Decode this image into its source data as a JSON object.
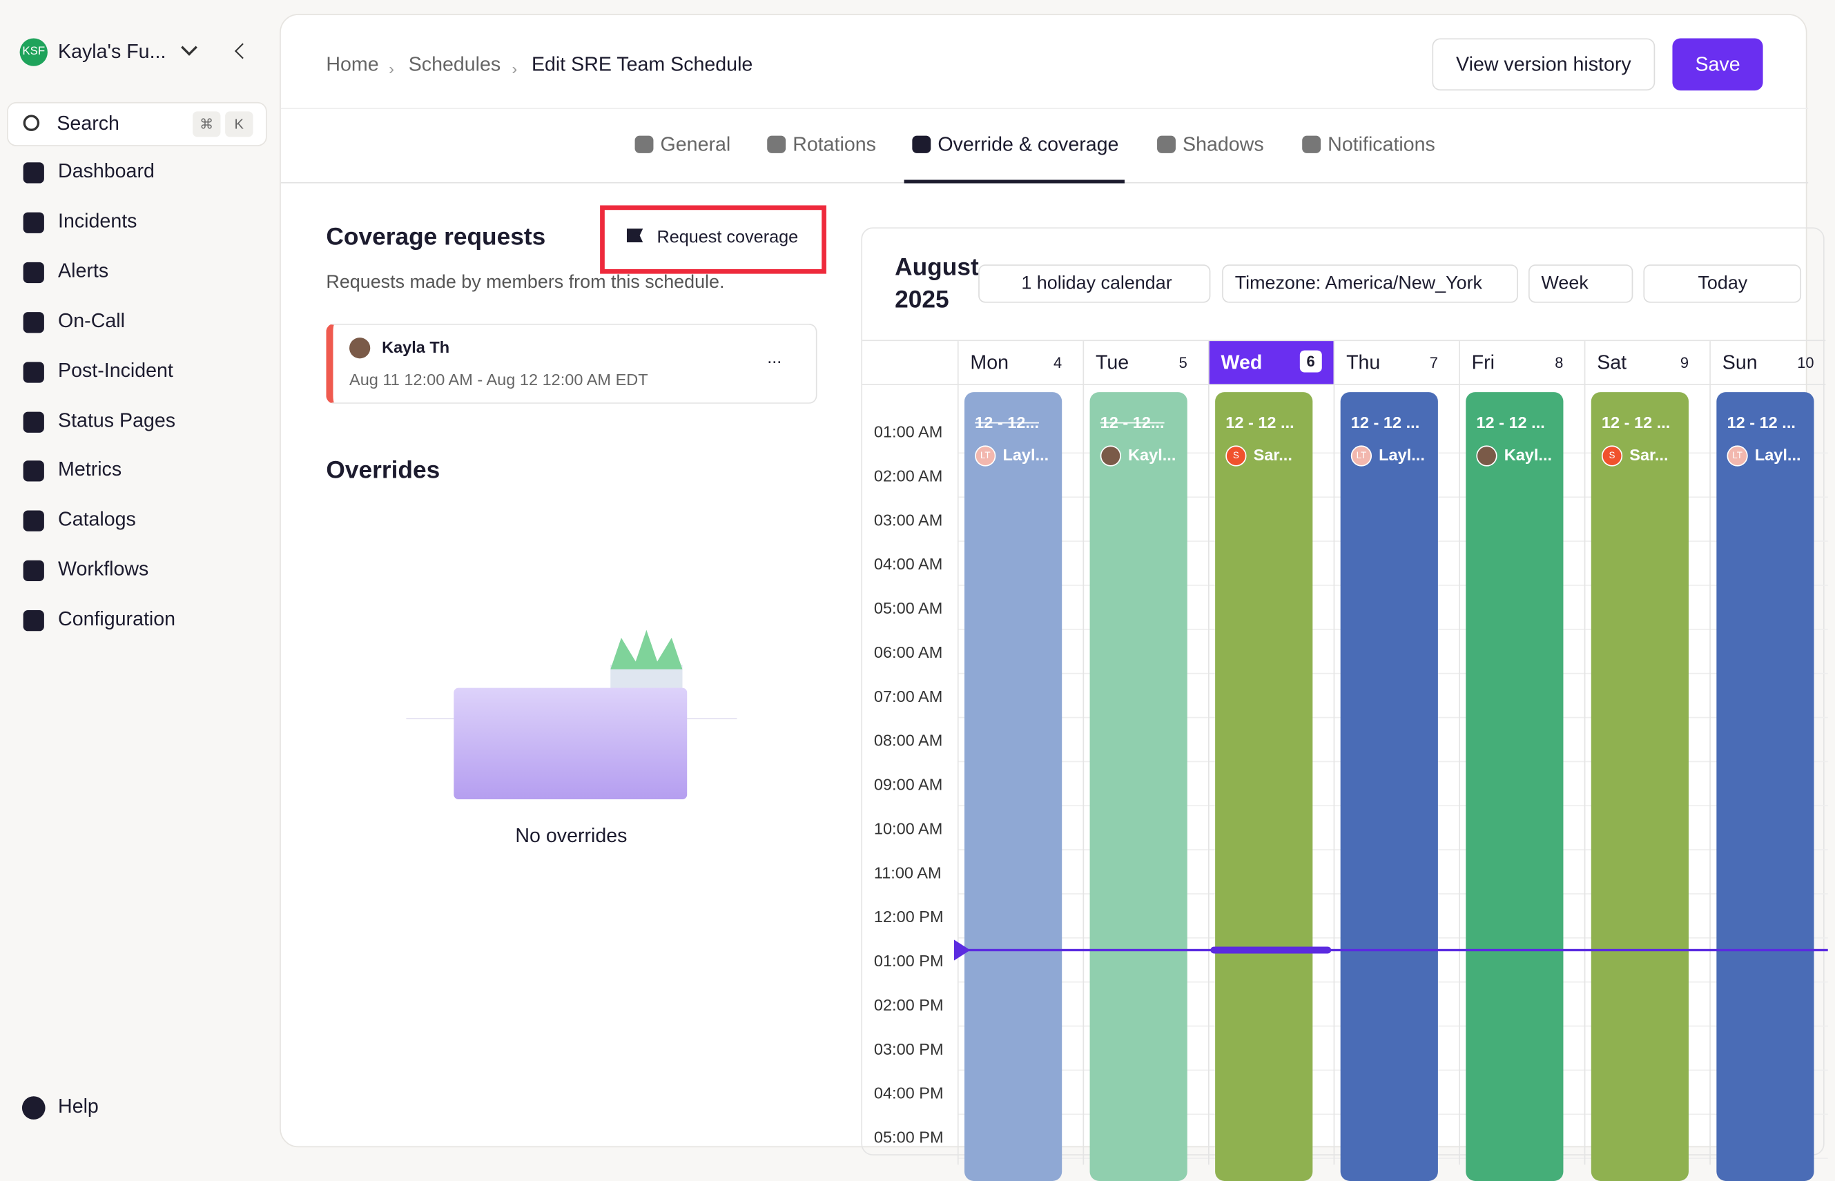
{
  "sidebar": {
    "workspace": "Kayla's Fu...",
    "workspace_badge": "KSF",
    "search": "Search",
    "shortcut": [
      "⌘",
      "K"
    ],
    "nav": [
      "Dashboard",
      "Incidents",
      "Alerts",
      "On-Call",
      "Post-Incident",
      "Status Pages",
      "Metrics",
      "Catalogs",
      "Workflows",
      "Configuration"
    ],
    "help": "Help"
  },
  "header": {
    "breadcrumb": [
      "Home",
      "Schedules",
      "Edit SRE Team Schedule"
    ],
    "history_button": "View version history",
    "save_button": "Save"
  },
  "tabs": {
    "items": [
      "General",
      "Rotations",
      "Override & coverage",
      "Shadows",
      "Notifications"
    ],
    "active": 2
  },
  "coverage": {
    "title": "Coverage requests",
    "request_button": "Request coverage",
    "description": "Requests made by members from this schedule.",
    "request": {
      "name": "Kayla Th",
      "time": "Aug 11 12:00 AM - Aug 12 12:00 AM EDT",
      "menu": "..."
    }
  },
  "overrides": {
    "title": "Overrides",
    "empty": "No overrides"
  },
  "calendar": {
    "month": "August",
    "year": "2025",
    "holiday": "1 holiday calendar",
    "timezone": "Timezone: America/New_York",
    "view": "Week",
    "today": "Today",
    "days": [
      {
        "name": "Mon",
        "date": "4",
        "title": "12 - 12...",
        "person": "Layl...",
        "initials": "LT",
        "color": "#8fa8d4",
        "avatar": "#f2b7ae",
        "struck": true
      },
      {
        "name": "Tue",
        "date": "5",
        "title": "12 - 12...",
        "person": "Kayl...",
        "initials": "",
        "color": "#90cfae",
        "avatar": "#7a5a48",
        "struck": true
      },
      {
        "name": "Wed",
        "date": "6",
        "title": "12 - 12 ...",
        "person": "Sar...",
        "initials": "S",
        "color": "#8fb150",
        "avatar": "#f0522d",
        "struck": false,
        "current": true
      },
      {
        "name": "Thu",
        "date": "7",
        "title": "12 - 12 ...",
        "person": "Layl...",
        "initials": "LT",
        "color": "#4a6cb6",
        "avatar": "#f2b7ae",
        "struck": false
      },
      {
        "name": "Fri",
        "date": "8",
        "title": "12 - 12 ...",
        "person": "Kayl...",
        "initials": "",
        "color": "#45ae78",
        "avatar": "#7a5a48",
        "struck": false
      },
      {
        "name": "Sat",
        "date": "9",
        "title": "12 - 12 ...",
        "person": "Sar...",
        "initials": "S",
        "color": "#8fb150",
        "avatar": "#f0522d",
        "struck": false
      },
      {
        "name": "Sun",
        "date": "10",
        "title": "12 - 12 ...",
        "person": "Layl...",
        "initials": "LT",
        "color": "#4a6cb6",
        "avatar": "#f2b7ae",
        "struck": false
      }
    ],
    "hours": [
      "01:00 AM",
      "02:00 AM",
      "03:00 AM",
      "04:00 AM",
      "05:00 AM",
      "06:00 AM",
      "07:00 AM",
      "08:00 AM",
      "09:00 AM",
      "10:00 AM",
      "11:00 AM",
      "12:00 PM",
      "01:00 PM",
      "02:00 PM",
      "03:00 PM",
      "04:00 PM",
      "05:00 PM"
    ]
  }
}
